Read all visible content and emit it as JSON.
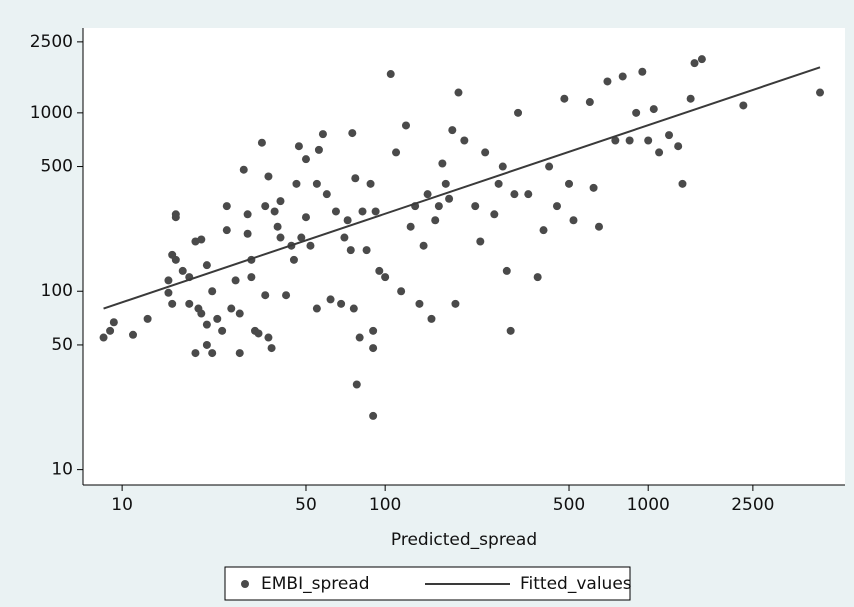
{
  "chart_data": {
    "type": "scatter",
    "x_label": "Predicted_spread",
    "xlog": true,
    "ylog": true,
    "xlim": [
      7.1,
      5600
    ],
    "ylim": [
      8.2,
      2990
    ],
    "xticks": [
      10,
      50,
      100,
      500,
      1000,
      2500
    ],
    "yticks": [
      10,
      50,
      100,
      500,
      1000,
      2500
    ],
    "series": [
      {
        "name": "EMBI_spread",
        "type": "scatter",
        "color": "#4a4a4a",
        "x": [
          8.5,
          9,
          9.3,
          11,
          12.5,
          15,
          15,
          15.5,
          15.5,
          16,
          16,
          16,
          17,
          18,
          18,
          19,
          19,
          19.5,
          20,
          20,
          21,
          21,
          21,
          22,
          22,
          23,
          24,
          25,
          25,
          26,
          27,
          28,
          28,
          29,
          30,
          30,
          31,
          31,
          32,
          33,
          34,
          35,
          35,
          36,
          36,
          37,
          38,
          39,
          40,
          40,
          42,
          44,
          45,
          46,
          47,
          48,
          50,
          50,
          52,
          55,
          55,
          56,
          58,
          60,
          62,
          65,
          68,
          70,
          72,
          74,
          75,
          76,
          77,
          78,
          80,
          82,
          85,
          88,
          90,
          90,
          90,
          92,
          95,
          100,
          105,
          110,
          115,
          120,
          125,
          130,
          135,
          140,
          145,
          150,
          155,
          160,
          165,
          170,
          175,
          180,
          185,
          190,
          200,
          220,
          230,
          240,
          260,
          270,
          280,
          290,
          300,
          310,
          320,
          350,
          380,
          400,
          420,
          450,
          480,
          500,
          520,
          600,
          620,
          650,
          700,
          750,
          800,
          850,
          900,
          950,
          1000,
          1050,
          1100,
          1200,
          1300,
          1350,
          1450,
          1500,
          1600,
          2300,
          4500
        ],
        "values": [
          55,
          60,
          67,
          57,
          70,
          115,
          98,
          85,
          160,
          270,
          260,
          150,
          130,
          120,
          85,
          45,
          190,
          80,
          195,
          75,
          65,
          50,
          140,
          45,
          100,
          70,
          60,
          220,
          300,
          80,
          115,
          45,
          75,
          480,
          270,
          210,
          150,
          120,
          60,
          58,
          680,
          95,
          300,
          440,
          55,
          48,
          280,
          230,
          200,
          320,
          95,
          180,
          150,
          400,
          650,
          200,
          550,
          260,
          180,
          80,
          400,
          620,
          760,
          350,
          90,
          280,
          85,
          200,
          250,
          170,
          770,
          80,
          430,
          30,
          55,
          280,
          170,
          400,
          20,
          60,
          48,
          280,
          130,
          120,
          1650,
          600,
          100,
          850,
          230,
          300,
          85,
          180,
          350,
          70,
          250,
          300,
          520,
          400,
          330,
          800,
          85,
          1300,
          700,
          300,
          190,
          600,
          270,
          400,
          500,
          130,
          60,
          350,
          1000,
          350,
          120,
          220,
          500,
          300,
          1200,
          400,
          250,
          1150,
          380,
          230,
          1500,
          700,
          1600,
          700,
          1000,
          1700,
          700,
          1050,
          600,
          750,
          650,
          400,
          1200,
          1900,
          2000,
          1100,
          1300
        ]
      },
      {
        "name": "Fitted_values",
        "type": "line",
        "color": "#3a3a3a",
        "x": [
          8.5,
          4500
        ],
        "values": [
          80,
          1800
        ]
      }
    ]
  }
}
